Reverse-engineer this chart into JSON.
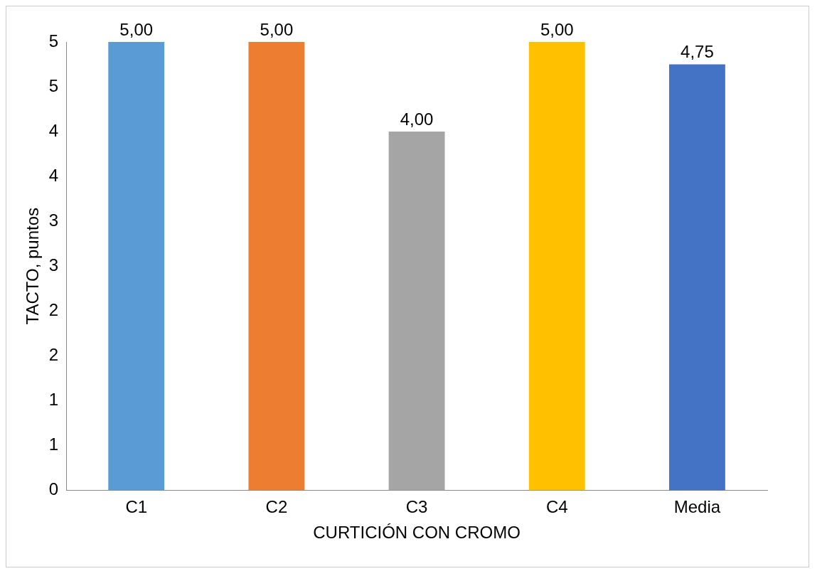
{
  "chart_data": {
    "type": "bar",
    "xlabel": "CURTICIÓN CON CROMO",
    "ylabel": "TACTO, puntos",
    "categories": [
      "C1",
      "C2",
      "C3",
      "C4",
      "Media"
    ],
    "values": [
      5,
      5,
      4,
      5,
      4.75
    ],
    "colors": [
      "#5b9bd5",
      "#ed7d31",
      "#a5a5a5",
      "#ffc000",
      "#4472c4"
    ],
    "value_labels": [
      "5,00",
      "5,00",
      "4,00",
      "5,00",
      "4,75"
    ],
    "ylim": [
      0,
      5
    ],
    "yticks": [
      0,
      {
        "value": 0.5,
        "label": "1"
      },
      {
        "value": 1,
        "label": "1"
      },
      {
        "value": 1.5,
        "label": "2"
      },
      {
        "value": 2,
        "label": "2"
      },
      {
        "value": 2.5,
        "label": "3"
      },
      {
        "value": 3,
        "label": "3"
      },
      {
        "value": 3.5,
        "label": "4"
      },
      {
        "value": 4,
        "label": "4"
      },
      {
        "value": 4.5,
        "label": "5"
      },
      {
        "value": 5,
        "label": "5"
      }
    ],
    "grid": false,
    "legend": false
  }
}
